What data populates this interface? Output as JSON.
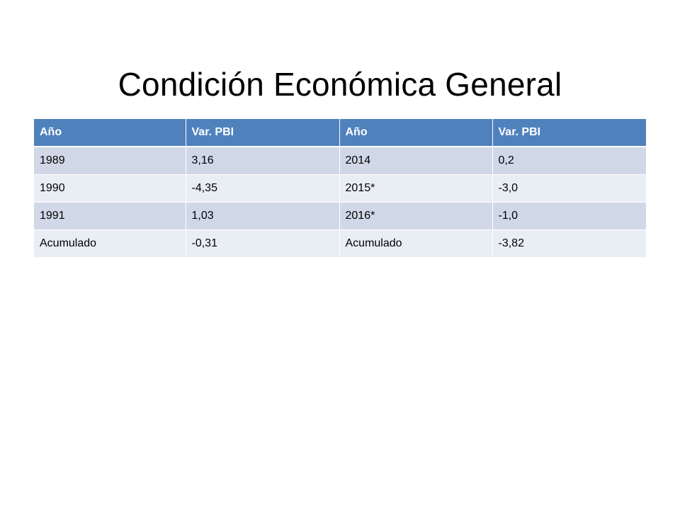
{
  "slide": {
    "title": "Condición Económica General"
  },
  "table": {
    "headers": [
      "Año",
      "Var. PBI",
      "Año",
      "Var. PBI"
    ],
    "rows": [
      [
        "1989",
        "3,16",
        "2014",
        "0,2"
      ],
      [
        "1990",
        "-4,35",
        "2015*",
        "-3,0"
      ],
      [
        "1991",
        "1,03",
        "2016*",
        "-1,0"
      ],
      [
        "Acumulado",
        "-0,31",
        "Acumulado",
        "-3,82"
      ]
    ]
  },
  "colors": {
    "header_bg": "#4f81bd",
    "header_text": "#ffffff",
    "row_odd_bg": "#d0d8e8",
    "row_even_bg": "#e9edf4"
  }
}
